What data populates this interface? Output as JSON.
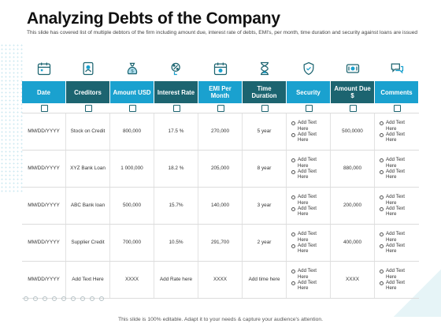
{
  "title": "Analyzing Debts of the Company",
  "subtitle": "This slide has covered list of multiple debtors of the firm including amount due, interest rate of debts, EMI's, per month, time duration and security against loans are issued",
  "icons": [
    "calendar-icon",
    "creditors-icon",
    "money-bag-icon",
    "interest-rate-icon",
    "calendar-money-icon",
    "hourglass-icon",
    "security-shield-icon",
    "amount-due-icon",
    "comments-icon"
  ],
  "colors": {
    "header_light": "#1aa1cf",
    "header_dark": "#1c6470",
    "icon": "#1c6470"
  },
  "columns": [
    "Date",
    "Creditors",
    "Amount USD",
    "Interest Rate",
    "EMI Per Month",
    "Time Duration",
    "Security",
    "Amount Due $",
    "Comments"
  ],
  "rows": [
    {
      "date": "MM/DD/YYYY",
      "creditor": "Stock on Credit",
      "amount": "800,000",
      "interest": "17.5 %",
      "emi": "270,000",
      "duration": "5 year",
      "security": [
        "Add Text Here",
        "Add Text Here"
      ],
      "due": "500,0000",
      "comments": [
        "Add Text Here",
        "Add Text Here"
      ]
    },
    {
      "date": "MM/DD/YYYY",
      "creditor": "XYZ Bank Loan",
      "amount": "1 000,000",
      "interest": "18.2 %",
      "emi": "205,000",
      "duration": "8 year",
      "security": [
        "Add Text Here",
        "Add Text Here"
      ],
      "due": "880,000",
      "comments": [
        "Add Text Here",
        "Add Text Here"
      ]
    },
    {
      "date": "MM/DD/YYYY",
      "creditor": "ABC Bank loan",
      "amount": "500,000",
      "interest": "15.7%",
      "emi": "140,000",
      "duration": "3 year",
      "security": [
        "Add Text Here",
        "Add Text Here"
      ],
      "due": "200,000",
      "comments": [
        "Add Text Here",
        "Add Text Here"
      ]
    },
    {
      "date": "MM/DD/YYYY",
      "creditor": "Supplier Credit",
      "amount": "700,000",
      "interest": "10.5%",
      "emi": "291,700",
      "duration": "2 year",
      "security": [
        "Add Text Here",
        "Add Text Here"
      ],
      "due": "400,000",
      "comments": [
        "Add Text Here",
        "Add Text Here"
      ]
    },
    {
      "date": "MM/DD/YYYY",
      "creditor": "Add Text Here",
      "amount": "XXXX",
      "interest": "Add Rate here",
      "emi": "XXXX",
      "duration": "Add time here",
      "security": [
        "Add Text Here",
        "Add Text Here"
      ],
      "due": "XXXX",
      "comments": [
        "Add Text Here",
        "Add Text Here"
      ]
    }
  ],
  "footer": "This slide is 100% editable. Adapt it to your needs & capture your audience's attention."
}
